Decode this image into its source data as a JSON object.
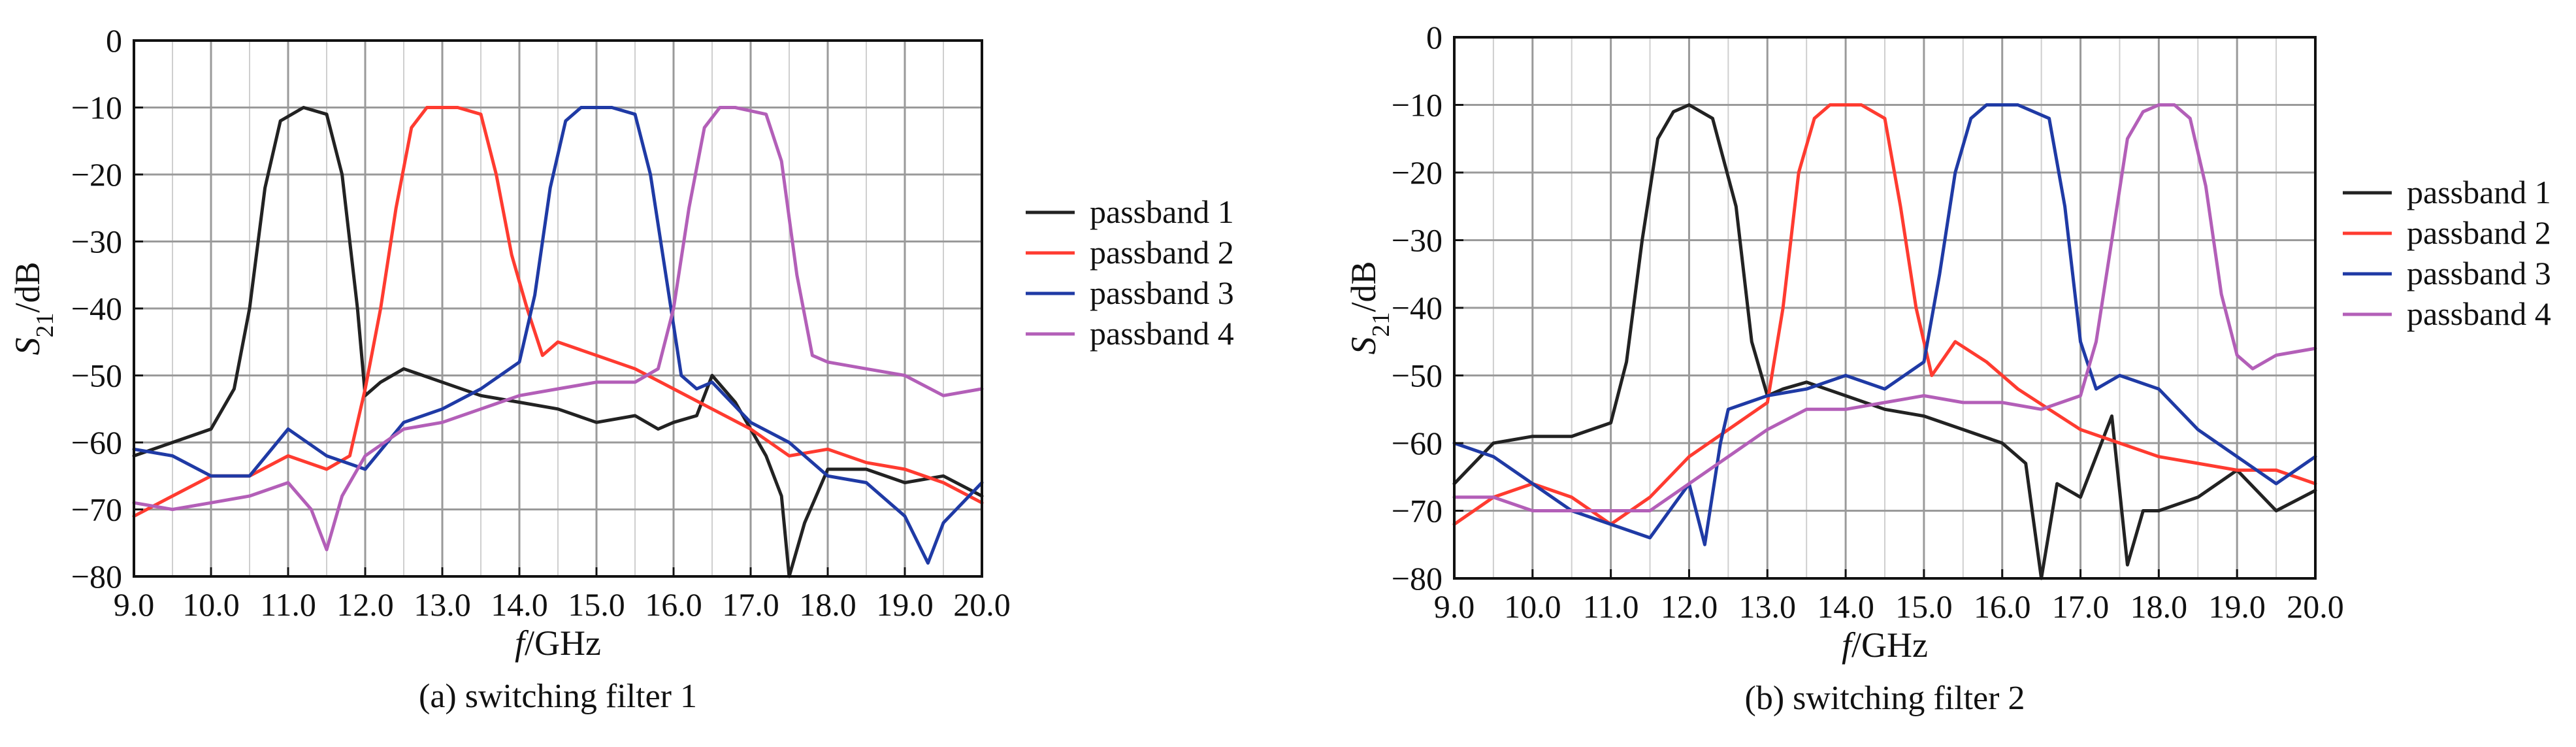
{
  "chart_data": [
    {
      "type": "line",
      "caption": "(a) switching filter 1",
      "xlabel": "f/GHz",
      "ylabel": "S21/dB",
      "xlim": [
        9.0,
        20.0
      ],
      "ylim": [
        -80,
        0
      ],
      "xticks": [
        "9.0",
        "10.0",
        "11.0",
        "12.0",
        "13.0",
        "14.0",
        "15.0",
        "16.0",
        "17.0",
        "18.0",
        "19.0",
        "20.0"
      ],
      "yticks": [
        "0",
        "−10",
        "−20",
        "−30",
        "−40",
        "−50",
        "−60",
        "−70",
        "−80"
      ],
      "grid": true,
      "legend_position": "right",
      "series": [
        {
          "name": "passband 1",
          "color": "#222222",
          "x": [
            9.0,
            9.5,
            10.0,
            10.3,
            10.5,
            10.7,
            10.9,
            11.2,
            11.5,
            11.7,
            11.9,
            12.0,
            12.2,
            12.5,
            13.0,
            13.5,
            14.0,
            14.5,
            15.0,
            15.5,
            15.8,
            16.0,
            16.3,
            16.5,
            16.8,
            17.0,
            17.2,
            17.4,
            17.5,
            17.7,
            18.0,
            18.5,
            19.0,
            19.5,
            20.0
          ],
          "y": [
            -62,
            -60,
            -58,
            -52,
            -40,
            -22,
            -12,
            -10,
            -11,
            -20,
            -40,
            -53,
            -51,
            -49,
            -51,
            -53,
            -54,
            -55,
            -57,
            -56,
            -58,
            -57,
            -56,
            -50,
            -54,
            -58,
            -62,
            -68,
            -80,
            -72,
            -64,
            -64,
            -66,
            -65,
            -68
          ]
        },
        {
          "name": "passband 2",
          "color": "#ff3b30",
          "x": [
            9.0,
            9.5,
            10.0,
            10.5,
            11.0,
            11.5,
            11.8,
            12.0,
            12.2,
            12.4,
            12.6,
            12.8,
            13.2,
            13.5,
            13.7,
            13.9,
            14.1,
            14.3,
            14.5,
            15.0,
            15.5,
            16.0,
            16.5,
            17.0,
            17.5,
            18.0,
            18.5,
            19.0,
            19.5,
            20.0
          ],
          "y": [
            -71,
            -68,
            -65,
            -65,
            -62,
            -64,
            -62,
            -52,
            -40,
            -25,
            -13,
            -10,
            -10,
            -11,
            -20,
            -32,
            -40,
            -47,
            -45,
            -47,
            -49,
            -52,
            -55,
            -58,
            -62,
            -61,
            -63,
            -64,
            -66,
            -69
          ]
        },
        {
          "name": "passband 3",
          "color": "#1f3aa5",
          "x": [
            9.0,
            9.5,
            10.0,
            10.5,
            11.0,
            11.5,
            12.0,
            12.5,
            13.0,
            13.5,
            14.0,
            14.2,
            14.4,
            14.6,
            14.8,
            15.2,
            15.5,
            15.7,
            15.9,
            16.1,
            16.3,
            16.5,
            17.0,
            17.5,
            18.0,
            18.5,
            19.0,
            19.3,
            19.5,
            20.0
          ],
          "y": [
            -61,
            -62,
            -65,
            -65,
            -58,
            -62,
            -64,
            -57,
            -55,
            -52,
            -48,
            -38,
            -22,
            -12,
            -10,
            -10,
            -11,
            -20,
            -35,
            -50,
            -52,
            -51,
            -57,
            -60,
            -65,
            -66,
            -71,
            -78,
            -72,
            -66
          ]
        },
        {
          "name": "passband 4",
          "color": "#b35fb8",
          "x": [
            9.0,
            9.5,
            10.0,
            10.5,
            11.0,
            11.3,
            11.5,
            11.7,
            12.0,
            12.5,
            13.0,
            13.5,
            14.0,
            14.5,
            15.0,
            15.5,
            15.8,
            16.0,
            16.2,
            16.4,
            16.6,
            16.8,
            17.2,
            17.4,
            17.6,
            17.8,
            18.0,
            18.5,
            19.0,
            19.5,
            20.0
          ],
          "y": [
            -69,
            -70,
            -69,
            -68,
            -66,
            -70,
            -76,
            -68,
            -62,
            -58,
            -57,
            -55,
            -53,
            -52,
            -51,
            -51,
            -49,
            -40,
            -25,
            -13,
            -10,
            -10,
            -11,
            -18,
            -35,
            -47,
            -48,
            -49,
            -50,
            -53,
            -52
          ]
        }
      ]
    },
    {
      "type": "line",
      "caption": "(b) switching filter 2",
      "xlabel": "f/GHz",
      "ylabel": "S21/dB",
      "xlim": [
        9.0,
        20.0
      ],
      "ylim": [
        -80,
        0
      ],
      "xticks": [
        "9.0",
        "10.0",
        "11.0",
        "12.0",
        "13.0",
        "14.0",
        "15.0",
        "16.0",
        "17.0",
        "18.0",
        "19.0",
        "20.0"
      ],
      "yticks": [
        "0",
        "−10",
        "−20",
        "−30",
        "−40",
        "−50",
        "−60",
        "−70",
        "−80"
      ],
      "grid": true,
      "legend_position": "right",
      "series": [
        {
          "name": "passband 1",
          "color": "#222222",
          "x": [
            9.0,
            9.5,
            10.0,
            10.5,
            11.0,
            11.2,
            11.4,
            11.6,
            11.8,
            12.0,
            12.3,
            12.6,
            12.8,
            13.0,
            13.2,
            13.5,
            14.0,
            14.5,
            15.0,
            15.5,
            16.0,
            16.3,
            16.5,
            16.7,
            17.0,
            17.2,
            17.4,
            17.6,
            17.8,
            18.0,
            18.5,
            19.0,
            19.5,
            20.0
          ],
          "y": [
            -66,
            -60,
            -59,
            -59,
            -57,
            -48,
            -30,
            -15,
            -11,
            -10,
            -12,
            -25,
            -45,
            -53,
            -52,
            -51,
            -53,
            -55,
            -56,
            -58,
            -60,
            -63,
            -80,
            -66,
            -68,
            -62,
            -56,
            -78,
            -70,
            -70,
            -68,
            -64,
            -70,
            -67
          ]
        },
        {
          "name": "passband 2",
          "color": "#ff3b30",
          "x": [
            9.0,
            9.5,
            10.0,
            10.5,
            11.0,
            11.5,
            12.0,
            12.5,
            13.0,
            13.2,
            13.4,
            13.6,
            13.8,
            14.2,
            14.5,
            14.7,
            14.9,
            15.1,
            15.4,
            15.8,
            16.2,
            16.6,
            17.0,
            17.5,
            18.0,
            18.5,
            19.0,
            19.5,
            20.0
          ],
          "y": [
            -72,
            -68,
            -66,
            -68,
            -72,
            -68,
            -62,
            -58,
            -54,
            -40,
            -20,
            -12,
            -10,
            -10,
            -12,
            -25,
            -40,
            -50,
            -45,
            -48,
            -52,
            -55,
            -58,
            -60,
            -62,
            -63,
            -64,
            -64,
            -66
          ]
        },
        {
          "name": "passband 3",
          "color": "#1f3aa5",
          "x": [
            9.0,
            9.5,
            10.0,
            10.5,
            11.0,
            11.5,
            12.0,
            12.2,
            12.4,
            12.5,
            13.0,
            13.5,
            14.0,
            14.5,
            15.0,
            15.2,
            15.4,
            15.6,
            15.8,
            16.2,
            16.6,
            16.8,
            17.0,
            17.2,
            17.5,
            18.0,
            18.5,
            19.0,
            19.5,
            20.0
          ],
          "y": [
            -60,
            -62,
            -66,
            -70,
            -72,
            -74,
            -66,
            -75,
            -60,
            -55,
            -53,
            -52,
            -50,
            -52,
            -48,
            -35,
            -20,
            -12,
            -10,
            -10,
            -12,
            -25,
            -45,
            -52,
            -50,
            -52,
            -58,
            -62,
            -66,
            -62
          ]
        },
        {
          "name": "passband 4",
          "color": "#b35fb8",
          "x": [
            9.0,
            9.5,
            10.0,
            10.5,
            11.0,
            11.5,
            12.0,
            12.5,
            13.0,
            13.5,
            14.0,
            14.5,
            15.0,
            15.5,
            16.0,
            16.5,
            17.0,
            17.2,
            17.4,
            17.6,
            17.8,
            18.0,
            18.2,
            18.4,
            18.6,
            18.8,
            19.0,
            19.2,
            19.5,
            20.0
          ],
          "y": [
            -68,
            -68,
            -70,
            -70,
            -70,
            -70,
            -66,
            -62,
            -58,
            -55,
            -55,
            -54,
            -53,
            -54,
            -54,
            -55,
            -53,
            -45,
            -30,
            -15,
            -11,
            -10,
            -10,
            -12,
            -22,
            -38,
            -47,
            -49,
            -47,
            -46
          ]
        }
      ]
    }
  ]
}
